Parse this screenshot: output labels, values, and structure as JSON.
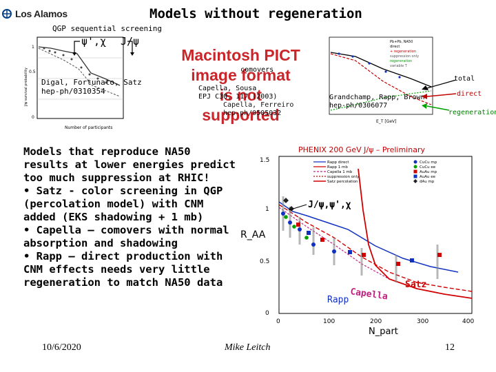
{
  "logo": {
    "text": "Los Alamos"
  },
  "slide": {
    "title": "Models without regeneration"
  },
  "left_plot": {
    "heading": "QGP sequential screening",
    "psi_prime_chi": "ψ',χ",
    "jpsi": "J/ψ",
    "citation_lines": [
      "Digal, Fortunato, Satz",
      "hep-ph/0310354"
    ],
    "xlabel": "Number of participants",
    "ylabel": "J/ψ survival probability"
  },
  "pict": {
    "lines": [
      "Macintosh PICT",
      "image format",
      "is not supported"
    ]
  },
  "middle_labels": {
    "comovers": "comovers",
    "capella_lines": [
      "Capella, Sousa",
      "EPJ C30, 117 (2003)"
    ],
    "capella2_lines": [
      "Capella, Ferreiro",
      "hep-ph/0505032"
    ]
  },
  "right_plot": {
    "legend": [
      "Pb+Pb, NA50",
      "direct",
      "+ regeneration",
      "suppression only",
      "regeneration",
      "variable T"
    ],
    "citation_lines": [
      "Grandchamp, Rapp, Brown",
      "hep-ph/0306077"
    ],
    "labels": {
      "total": "total",
      "direct": "direct",
      "regeneration": "regeneration"
    },
    "xlabel": "E_T [GeV]"
  },
  "body": {
    "lines": [
      "Models that reproduce NA50",
      "results at lower energies predict",
      "too much suppression at RHIC!",
      "• Satz - color screening in QGP",
      "(percolation model) with CNM",
      "added (EKS shadowing + 1 mb)",
      "• Capella – comovers with normal",
      "absorption and shadowing",
      "• Rapp – direct production with",
      "CNM effects needs very little",
      "regeneration to match NA50 data"
    ]
  },
  "phenix_plot": {
    "title": "PHENIX 200 GeV J/ψ – Preliminary",
    "ylabel": "R_AA",
    "xlabel": "N_part",
    "annotations": {
      "jpsi_chi": "J/ψ,ψ',χ",
      "satz": "Satz",
      "capella": "Capella",
      "rapp": "Rapp"
    },
    "legend_left": [
      "Rapp direct",
      "Rapp 1 mb",
      "Capella 1 mb",
      "suppression only",
      "Satz percolation"
    ],
    "legend_right": [
      "CuCu mp",
      "CuCu ee",
      "AuAu mp",
      "AuAu ee",
      "dAu mp"
    ],
    "colors": {
      "red": "#d00000",
      "blue": "#1030c0",
      "green": "#00a000"
    }
  },
  "footer": {
    "date": "10/6/2020",
    "author": "Mike Leitch",
    "page": "12"
  }
}
